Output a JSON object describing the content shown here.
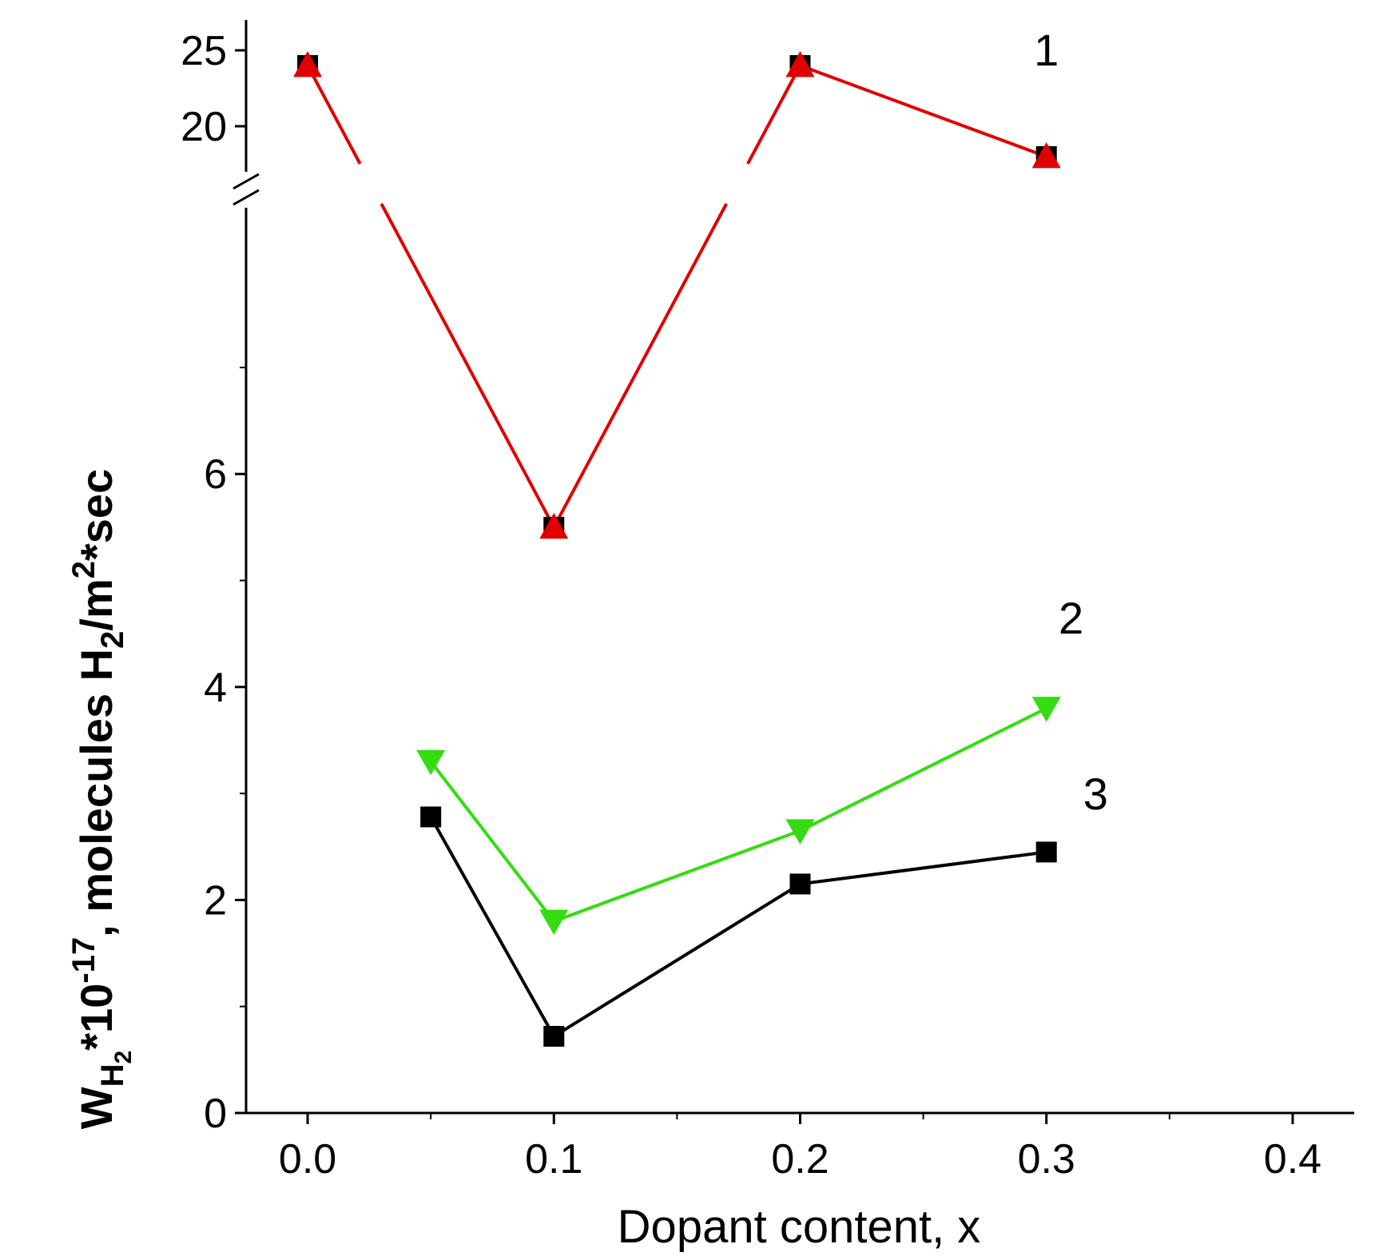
{
  "chart_data": {
    "type": "line",
    "title": "",
    "xlabel": "Dopant content, x",
    "ylabel": {
      "w": "W",
      "w_sub": "H",
      "w_subsub": "2",
      "mult": "*10",
      "exp": "-17",
      "unit_a": ", molecules H",
      "unit_sub": "2",
      "unit_b": "/m",
      "unit_sup": "2",
      "unit_c": "*sec"
    },
    "xlim": [
      -0.025,
      0.425
    ],
    "x_ticks": [
      "0.0",
      "0.1",
      "0.2",
      "0.3",
      "0.4"
    ],
    "x_tick_values": [
      0.0,
      0.1,
      0.2,
      0.3,
      0.4
    ],
    "y_lower_range": [
      0,
      8.5
    ],
    "y_lower_ticks": [
      "0",
      "2",
      "4",
      "6"
    ],
    "y_lower_tick_values": [
      0,
      2,
      4,
      6
    ],
    "y_upper_range": [
      17,
      27
    ],
    "y_upper_ticks": [
      "20",
      "25"
    ],
    "y_upper_tick_values": [
      20,
      25
    ],
    "axis_break": true,
    "series": [
      {
        "name": "1",
        "color": "#e00000",
        "marker": "triangle-up-on-square",
        "x": [
          0.0,
          0.1,
          0.2,
          0.3
        ],
        "values": [
          24,
          5.5,
          24,
          18
        ]
      },
      {
        "name": "2",
        "color": "#33dd11",
        "marker": "triangle-down",
        "x": [
          0.05,
          0.1,
          0.2,
          0.3
        ],
        "values": [
          3.3,
          1.8,
          2.65,
          3.8
        ]
      },
      {
        "name": "3",
        "color": "#000000",
        "marker": "square",
        "x": [
          0.05,
          0.1,
          0.2,
          0.3
        ],
        "values": [
          2.78,
          0.72,
          2.15,
          2.45
        ]
      }
    ],
    "series_labels": [
      {
        "text": "1",
        "x": 0.3,
        "y": 24,
        "for": "1"
      },
      {
        "text": "2",
        "x": 0.31,
        "y": 4.5,
        "for": "2"
      },
      {
        "text": "3",
        "x": 0.32,
        "y": 2.85,
        "for": "3"
      }
    ]
  }
}
